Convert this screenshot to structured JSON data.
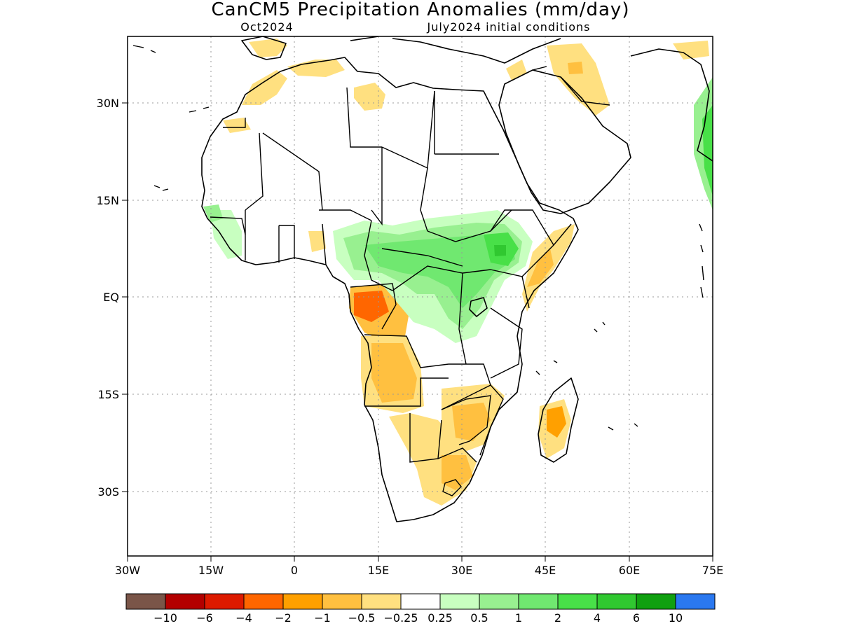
{
  "header": {
    "title": "CanCM5 Precipitation Anomalies (mm/day)",
    "month": "Oct2024",
    "init": "July2024 initial conditions"
  },
  "map": {
    "region": "Africa",
    "lat_ticks": [
      "30N",
      "15N",
      "EQ",
      "15S",
      "30S"
    ],
    "lon_ticks": [
      "30W",
      "15W",
      "0",
      "15E",
      "30E",
      "45E",
      "60E",
      "75E"
    ],
    "grid": "dotted",
    "lon_range": [
      -30,
      75
    ],
    "lat_range": [
      -40,
      40
    ]
  },
  "colorbar": {
    "labels": [
      "−10",
      "−6",
      "−4",
      "−2",
      "−1",
      "−0.5",
      "−0.25",
      "0.25",
      "0.5",
      "1",
      "2",
      "4",
      "6",
      "10"
    ],
    "colors": [
      "#7a5548",
      "#b30000",
      "#dd1a00",
      "#ff6600",
      "#ffa000",
      "#ffc040",
      "#ffe080",
      "#ffffff",
      "#c8ffc0",
      "#98f090",
      "#70e870",
      "#48e048",
      "#30c830",
      "#10a010",
      "#2a78f0"
    ]
  },
  "colors": {
    "land_outline": "#000000",
    "frame": "#000000",
    "grid": "#999999"
  }
}
